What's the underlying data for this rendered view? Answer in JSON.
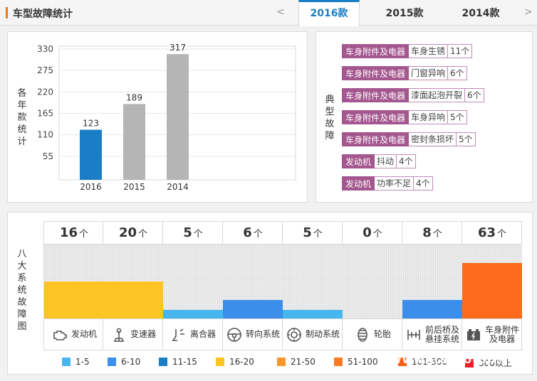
{
  "header": {
    "title": "车型故障统计",
    "prev": "<",
    "next": ">",
    "tabs": [
      {
        "label": "2016款",
        "active": true
      },
      {
        "label": "2015款",
        "active": false
      },
      {
        "label": "2014款",
        "active": false
      }
    ]
  },
  "yearly": {
    "side_label": "各年款统计",
    "chart_data": {
      "type": "bar",
      "categories": [
        "2016",
        "2015",
        "2014"
      ],
      "values": [
        123,
        189,
        317
      ],
      "yticks": [
        55,
        110,
        165,
        220,
        275,
        330
      ],
      "ylim": [
        0,
        330
      ],
      "colors": [
        "#1a7ec6",
        "#b5b5b5",
        "#b5b5b5"
      ]
    }
  },
  "typical": {
    "side_label": "典型故障",
    "rows": [
      {
        "system": "车身附件及电器",
        "fault": "车身生锈",
        "count": "11个"
      },
      {
        "system": "车身附件及电器",
        "fault": "门窗异响",
        "count": "6个"
      },
      {
        "system": "车身附件及电器",
        "fault": "漆面起泡开裂",
        "count": "6个"
      },
      {
        "system": "车身附件及电器",
        "fault": "车身异响",
        "count": "5个"
      },
      {
        "system": "车身附件及电器",
        "fault": "密封条损坏",
        "count": "5个"
      },
      {
        "system": "发动机",
        "fault": "抖动",
        "count": "4个"
      },
      {
        "system": "发动机",
        "fault": "功率不足",
        "count": "4个"
      }
    ]
  },
  "systems": {
    "side_label": "八大系统故障图",
    "unit": "个",
    "items": [
      {
        "name": "发动机",
        "icon": "engine-icon",
        "count": "16",
        "level": 0.5,
        "color": "#fcc524"
      },
      {
        "name": "变速器",
        "icon": "gearbox-icon",
        "count": "20",
        "level": 0.5,
        "color": "#fcc524"
      },
      {
        "name": "离合器",
        "icon": "clutch-icon",
        "count": "5",
        "level": 0.12,
        "color": "#45b7ee"
      },
      {
        "name": "转向系统",
        "icon": "steering-wheel-icon",
        "count": "6",
        "level": 0.25,
        "color": "#3b8ee9"
      },
      {
        "name": "制动系统",
        "icon": "brake-disc-icon",
        "count": "5",
        "level": 0.12,
        "color": "#45b7ee"
      },
      {
        "name": "轮胎",
        "icon": "tire-icon",
        "count": "0",
        "level": 0,
        "color": "#45b7ee"
      },
      {
        "name": "前后桥及悬挂系统",
        "name_lines": [
          "前后桥及",
          "悬挂系统"
        ],
        "icon": "axle-icon",
        "count": "8",
        "level": 0.25,
        "color": "#3b8ee9"
      },
      {
        "name": "车身附件及电器",
        "name_lines": [
          "车身附件",
          "及电器"
        ],
        "icon": "battery-icon",
        "count": "63",
        "level": 0.75,
        "color": "#fe6b1d"
      }
    ]
  },
  "legend": [
    {
      "label": "1-5",
      "color": "#45b7ee"
    },
    {
      "label": "6-10",
      "color": "#3b8ee9"
    },
    {
      "label": "11-15",
      "color": "#1a7ec6"
    },
    {
      "label": "16-20",
      "color": "#fcc524"
    },
    {
      "label": "21-50",
      "color": "#fb962c"
    },
    {
      "label": "51-100",
      "color": "#fb7a25"
    },
    {
      "label": "101-300",
      "color": "#fe5a12"
    },
    {
      "label": "300以上",
      "color": "#ea1e26"
    }
  ],
  "watermark": "www.itautotop.com"
}
